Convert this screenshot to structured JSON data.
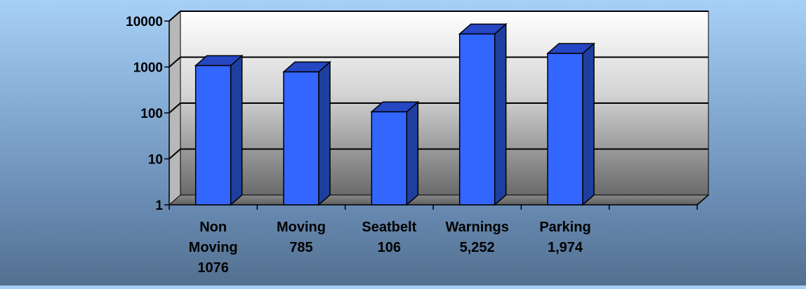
{
  "chart_data": {
    "type": "bar",
    "title": "",
    "xlabel": "",
    "ylabel": "",
    "yscale": "log",
    "ylim": [
      1,
      10000
    ],
    "yticks": [
      "1",
      "10",
      "100",
      "1000",
      "10000"
    ],
    "categories": [
      [
        "Non",
        "Moving",
        "1076"
      ],
      [
        "Moving",
        "785"
      ],
      [
        "Seatbelt",
        "106"
      ],
      [
        "Warnings",
        "5,252"
      ],
      [
        "Parking",
        "1,974"
      ]
    ],
    "values": [
      1076,
      785,
      106,
      5252,
      1974
    ],
    "grid": true,
    "legend": "none",
    "colors": {
      "bar_front": "#3366ff",
      "bar_side": "#1f3f9f",
      "bar_top": "#2547c4",
      "wall_top": "#ffffff",
      "wall_bottom": "#6e6e6e"
    }
  }
}
